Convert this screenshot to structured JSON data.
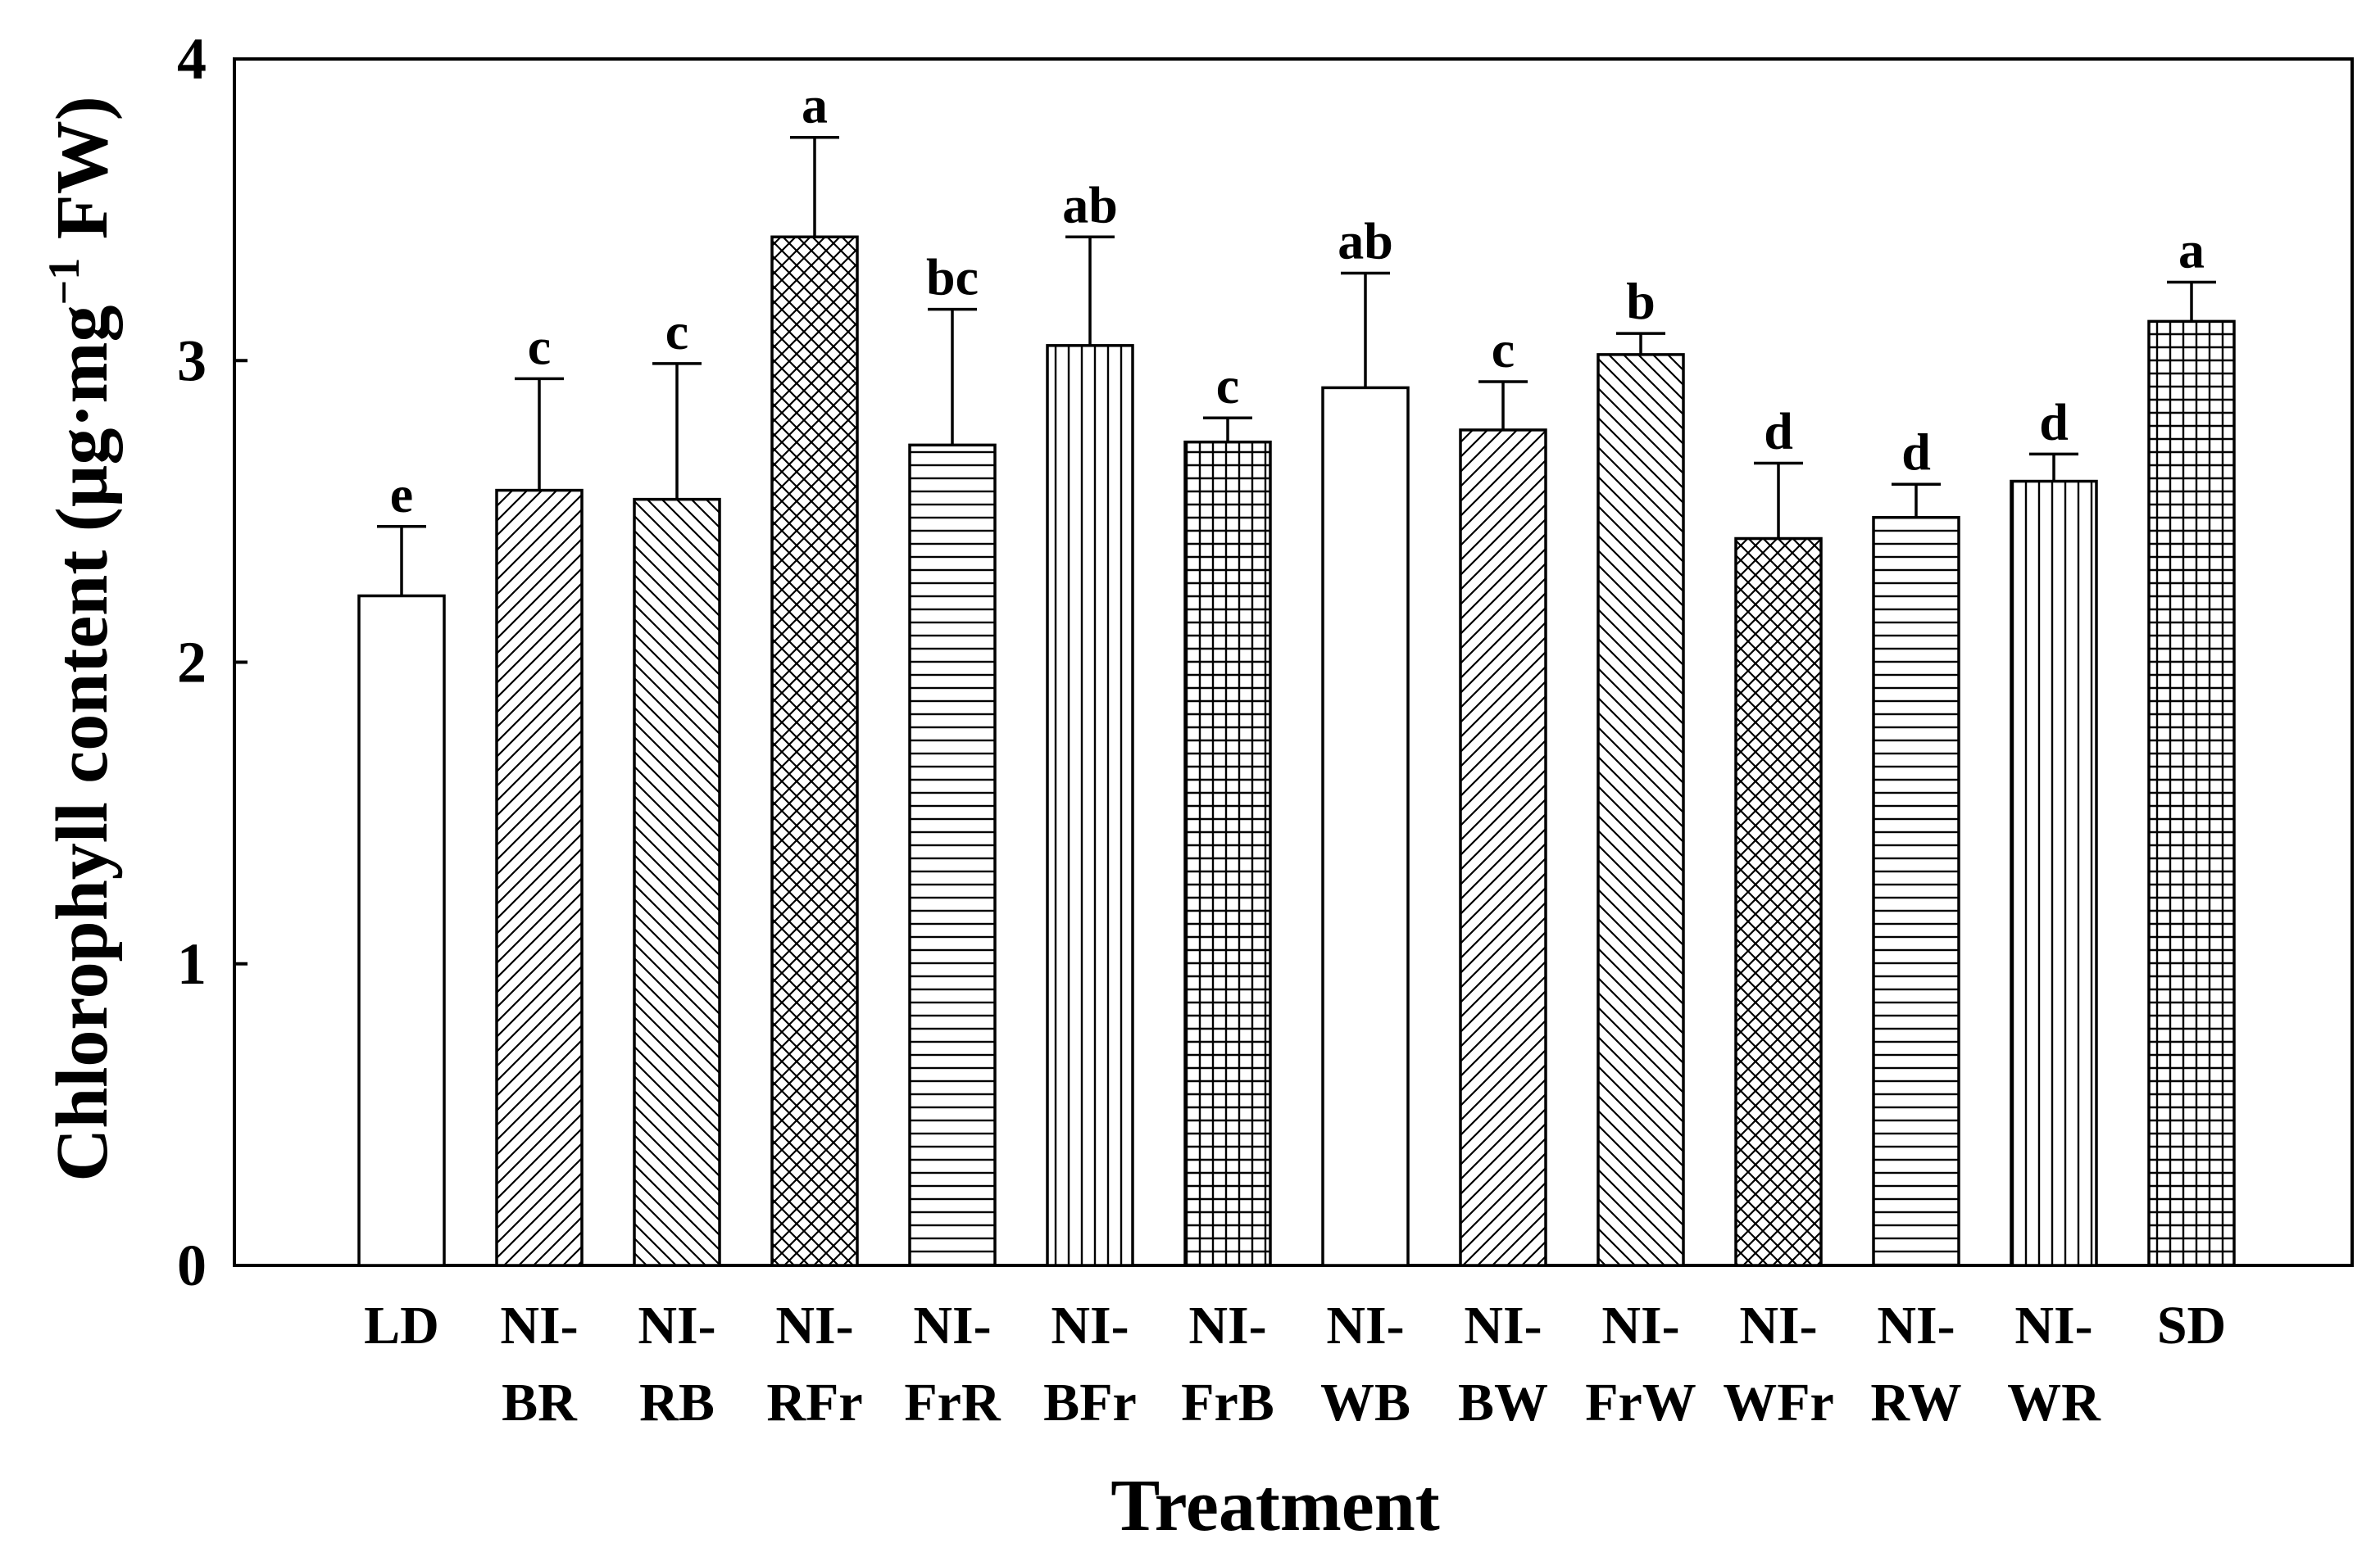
{
  "chart_data": {
    "type": "bar",
    "title": "",
    "xlabel": "Treatment",
    "ylabel": {
      "prefix": "Chlorophyll content (µg·mg",
      "sup": "−1",
      "suffix": " FW)"
    },
    "ylim": [
      0,
      4
    ],
    "yticks": [
      "0",
      "1",
      "2",
      "3",
      "4"
    ],
    "grid": false,
    "categories": [
      {
        "line1": "LD",
        "line2": ""
      },
      {
        "line1": "NI-",
        "line2": "BR"
      },
      {
        "line1": "NI-",
        "line2": "RB"
      },
      {
        "line1": "NI-",
        "line2": "RFr"
      },
      {
        "line1": "NI-",
        "line2": "FrR"
      },
      {
        "line1": "NI-",
        "line2": "BFr"
      },
      {
        "line1": "NI-",
        "line2": "FrB"
      },
      {
        "line1": "NI-",
        "line2": "WB"
      },
      {
        "line1": "NI-",
        "line2": "BW"
      },
      {
        "line1": "NI-",
        "line2": "FrW"
      },
      {
        "line1": "NI-",
        "line2": "WFr"
      },
      {
        "line1": "NI-",
        "line2": "RW"
      },
      {
        "line1": "NI-",
        "line2": "WR"
      },
      {
        "line1": "SD",
        "line2": ""
      }
    ],
    "values": [
      2.22,
      2.57,
      2.54,
      3.41,
      2.72,
      3.05,
      2.73,
      2.91,
      2.77,
      3.02,
      2.41,
      2.48,
      2.6,
      3.13
    ],
    "errors": [
      0.23,
      0.37,
      0.45,
      0.33,
      0.45,
      0.36,
      0.08,
      0.38,
      0.16,
      0.07,
      0.25,
      0.11,
      0.09,
      0.13
    ],
    "significance": [
      "e",
      "c",
      "c",
      "a",
      "bc",
      "ab",
      "c",
      "ab",
      "c",
      "b",
      "d",
      "d",
      "d",
      "a"
    ],
    "patterns": [
      "none",
      "diag-up",
      "diag-down",
      "crosshatch",
      "horizontal",
      "vertical",
      "grid",
      "none",
      "diag-up",
      "diag-down",
      "crosshatch",
      "horizontal",
      "vertical",
      "grid"
    ],
    "colors": {
      "ink": "#000000",
      "background": "#ffffff"
    }
  }
}
